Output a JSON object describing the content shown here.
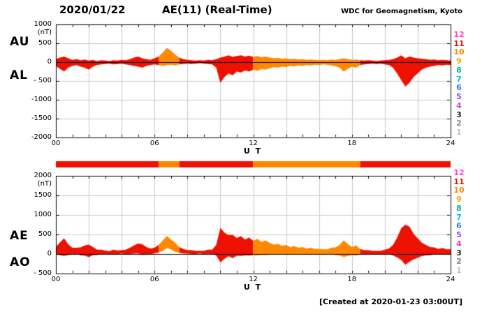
{
  "header": {
    "date": "2020/01/22",
    "title": "AE(11) (Real-Time)",
    "credit": "WDC for Geomagnetism, Kyoto"
  },
  "footer": {
    "created": "[Created at 2020-01-23 03:00UT]"
  },
  "colors": {
    "fill_red": "#ee1100",
    "fill_orange": "#ff8800",
    "grid": "#c9c9c9",
    "frame": "#000000"
  },
  "station_scale": [
    {
      "n": 12,
      "color": "#ff44cc"
    },
    {
      "n": 11,
      "color": "#ee1100"
    },
    {
      "n": 10,
      "color": "#ff8800"
    },
    {
      "n": 9,
      "color": "#eeaa00"
    },
    {
      "n": 8,
      "color": "#00bb88"
    },
    {
      "n": 7,
      "color": "#00bbee"
    },
    {
      "n": 6,
      "color": "#3377ff"
    },
    {
      "n": 5,
      "color": "#8844ff"
    },
    {
      "n": 4,
      "color": "#cc44cc"
    },
    {
      "n": 3,
      "color": "#222222"
    },
    {
      "n": 2,
      "color": "#888888"
    },
    {
      "n": 1,
      "color": "#c0c0c0"
    }
  ],
  "station_bar_segments": [
    {
      "start": 0,
      "end": 6.25,
      "n": 11
    },
    {
      "start": 6.25,
      "end": 7.5,
      "n": 10
    },
    {
      "start": 7.5,
      "end": 12,
      "n": 11
    },
    {
      "start": 12,
      "end": 18.5,
      "n": 10
    },
    {
      "start": 18.5,
      "end": 24,
      "n": 11
    }
  ],
  "chart_data": [
    {
      "type": "area",
      "panel": "AU-AL",
      "unit": "(nT)",
      "xlabel": "U T",
      "xlim": [
        0,
        24
      ],
      "ylim": [
        -2000,
        1000
      ],
      "ytick_values": [
        1000,
        500,
        0,
        -500,
        -1000,
        -1500,
        -2000
      ],
      "ytick_labels": [
        "1000",
        "500",
        "0",
        "- 500",
        "-1000",
        "-1500",
        "-2000"
      ],
      "xtick_values": [
        0,
        6,
        12,
        18,
        24
      ],
      "xtick_labels": [
        "00",
        "06",
        "12",
        "18",
        "24"
      ],
      "x_start": 0,
      "x_step": 0.25,
      "series": [
        {
          "name": "AU",
          "values": [
            80,
            120,
            150,
            100,
            60,
            80,
            50,
            70,
            40,
            60,
            30,
            50,
            40,
            30,
            50,
            40,
            60,
            50,
            80,
            120,
            150,
            100,
            80,
            60,
            100,
            150,
            250,
            380,
            300,
            200,
            120,
            80,
            60,
            50,
            40,
            50,
            40,
            60,
            50,
            80,
            120,
            150,
            180,
            140,
            160,
            180,
            150,
            170,
            140,
            160,
            130,
            150,
            120,
            100,
            110,
            90,
            100,
            80,
            90,
            70,
            80,
            60,
            70,
            60,
            50,
            60,
            50,
            70,
            60,
            80,
            100,
            80,
            60,
            70,
            50,
            40,
            50,
            40,
            30,
            40,
            50,
            60,
            80,
            120,
            180,
            100,
            150,
            120,
            100,
            90,
            80,
            60,
            70,
            50,
            60,
            50,
            40
          ]
        },
        {
          "name": "AL",
          "values": [
            -100,
            -180,
            -250,
            -150,
            -100,
            -80,
            -120,
            -150,
            -200,
            -120,
            -80,
            -60,
            -50,
            -40,
            -60,
            -50,
            -40,
            -60,
            -80,
            -100,
            -120,
            -150,
            -100,
            -80,
            -60,
            -80,
            -100,
            -80,
            -70,
            -90,
            -60,
            -50,
            -40,
            -50,
            -40,
            -30,
            -40,
            -50,
            -60,
            -150,
            -550,
            -400,
            -300,
            -350,
            -250,
            -280,
            -220,
            -250,
            -200,
            -230,
            -180,
            -200,
            -160,
            -140,
            -150,
            -120,
            -130,
            -100,
            -110,
            -90,
            -100,
            -80,
            -90,
            -70,
            -80,
            -60,
            -70,
            -90,
            -110,
            -150,
            -250,
            -180,
            -120,
            -150,
            -80,
            -60,
            -50,
            -40,
            -50,
            -40,
            -60,
            -80,
            -150,
            -300,
            -480,
            -650,
            -550,
            -400,
            -300,
            -200,
            -150,
            -120,
            -100,
            -80,
            -90,
            -70,
            -80
          ]
        }
      ]
    },
    {
      "type": "area",
      "panel": "AE-AO",
      "unit": "(nT)",
      "xlabel": "U T",
      "xlim": [
        0,
        24
      ],
      "ylim": [
        -500,
        2000
      ],
      "ytick_values": [
        2000,
        1500,
        1000,
        500,
        0,
        -500
      ],
      "ytick_labels": [
        "2000",
        "1500",
        "1000",
        "500",
        "0",
        "- 500"
      ],
      "xtick_values": [
        0,
        6,
        12,
        18,
        24
      ],
      "xtick_labels": [
        "00",
        "06",
        "12",
        "18",
        "24"
      ],
      "x_start": 0,
      "x_step": 0.25,
      "series": [
        {
          "name": "AE",
          "values": [
            180,
            300,
            400,
            250,
            160,
            160,
            170,
            220,
            240,
            180,
            110,
            110,
            90,
            70,
            110,
            90,
            100,
            110,
            160,
            220,
            270,
            250,
            180,
            140,
            160,
            230,
            350,
            460,
            370,
            290,
            180,
            130,
            100,
            100,
            80,
            80,
            80,
            110,
            110,
            230,
            670,
            550,
            480,
            490,
            410,
            460,
            370,
            420,
            340,
            390,
            310,
            350,
            280,
            240,
            260,
            210,
            230,
            180,
            200,
            160,
            180,
            140,
            160,
            130,
            130,
            120,
            120,
            160,
            170,
            230,
            350,
            260,
            180,
            220,
            130,
            100,
            100,
            80,
            80,
            80,
            110,
            140,
            230,
            420,
            660,
            750,
            700,
            520,
            400,
            290,
            230,
            180,
            170,
            130,
            150,
            120,
            120
          ]
        },
        {
          "name": "AO",
          "values": [
            -10,
            -30,
            -50,
            -25,
            -20,
            0,
            -35,
            -40,
            -80,
            -30,
            -25,
            -5,
            -5,
            -5,
            -5,
            -5,
            10,
            -5,
            0,
            10,
            15,
            -25,
            -10,
            -10,
            20,
            35,
            75,
            150,
            115,
            55,
            30,
            15,
            10,
            0,
            0,
            10,
            0,
            5,
            -5,
            -35,
            -215,
            -125,
            -60,
            -105,
            -45,
            -50,
            -35,
            -40,
            -30,
            -35,
            -25,
            -25,
            -20,
            -20,
            -20,
            -15,
            -15,
            -10,
            -10,
            -10,
            -10,
            -10,
            -10,
            -5,
            -15,
            0,
            -10,
            -10,
            -25,
            -35,
            -75,
            -50,
            -30,
            -40,
            -15,
            -10,
            0,
            0,
            -10,
            0,
            -5,
            -10,
            -35,
            -90,
            -150,
            -275,
            -200,
            -140,
            -100,
            -55,
            -35,
            -30,
            -15,
            -15,
            -15,
            -10,
            -20
          ]
        }
      ]
    }
  ]
}
